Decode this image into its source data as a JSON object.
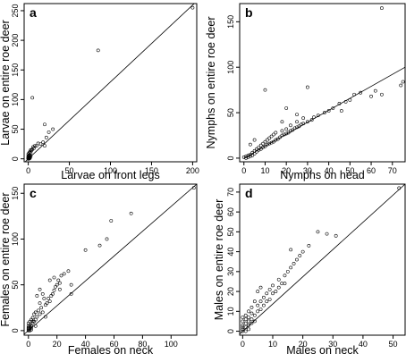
{
  "chart_data": [
    {
      "type": "scatter",
      "panel_label": "a",
      "xlabel": "Larvae on front legs",
      "ylabel": "Larvae on entire roe deer",
      "xlim": [
        -5,
        205
      ],
      "ylim": [
        -5,
        262
      ],
      "xticks": [
        0,
        50,
        100,
        150,
        200
      ],
      "yticks": [
        0,
        50,
        100,
        150,
        200,
        250
      ],
      "fit_line": [
        [
          -5,
          -6.5
        ],
        [
          205,
          266
        ]
      ],
      "points": [
        [
          0,
          0
        ],
        [
          0,
          0
        ],
        [
          0,
          1
        ],
        [
          1,
          0
        ],
        [
          0,
          2
        ],
        [
          1,
          1
        ],
        [
          1,
          2
        ],
        [
          2,
          1
        ],
        [
          0,
          3
        ],
        [
          2,
          3
        ],
        [
          1,
          4
        ],
        [
          2,
          2
        ],
        [
          0,
          5
        ],
        [
          3,
          4
        ],
        [
          1,
          6
        ],
        [
          2,
          6
        ],
        [
          0,
          8
        ],
        [
          1,
          10
        ],
        [
          2,
          12
        ],
        [
          3,
          10
        ],
        [
          4,
          14
        ],
        [
          5,
          16
        ],
        [
          3,
          15
        ],
        [
          6,
          20
        ],
        [
          7,
          18
        ],
        [
          10,
          22
        ],
        [
          15,
          25
        ],
        [
          18,
          28
        ],
        [
          20,
          22
        ],
        [
          25,
          45
        ],
        [
          30,
          50
        ],
        [
          22,
          36
        ],
        [
          12,
          26
        ],
        [
          8,
          22
        ],
        [
          20,
          58
        ],
        [
          5,
          103
        ],
        [
          85,
          183
        ],
        [
          200,
          255
        ]
      ]
    },
    {
      "type": "scatter",
      "panel_label": "b",
      "xlabel": "Nymphs on head",
      "ylabel": "Nymphs on entire roe deer",
      "xlim": [
        -2,
        76
      ],
      "ylim": [
        -4,
        170
      ],
      "xticks": [
        0,
        10,
        20,
        30,
        40,
        50,
        60,
        70
      ],
      "yticks": [
        0,
        50,
        100,
        150
      ],
      "fit_line": [
        [
          0,
          0
        ],
        [
          76,
          100
        ]
      ],
      "points": [
        [
          0,
          1
        ],
        [
          1,
          0
        ],
        [
          1,
          2
        ],
        [
          2,
          1
        ],
        [
          2,
          3
        ],
        [
          3,
          2
        ],
        [
          3,
          4
        ],
        [
          4,
          3
        ],
        [
          4,
          6
        ],
        [
          5,
          5
        ],
        [
          5,
          8
        ],
        [
          6,
          7
        ],
        [
          6,
          10
        ],
        [
          7,
          9
        ],
        [
          7,
          12
        ],
        [
          8,
          10
        ],
        [
          8,
          14
        ],
        [
          9,
          12
        ],
        [
          9,
          16
        ],
        [
          10,
          13
        ],
        [
          10,
          18
        ],
        [
          11,
          15
        ],
        [
          11,
          20
        ],
        [
          12,
          16
        ],
        [
          12,
          22
        ],
        [
          13,
          17
        ],
        [
          13,
          24
        ],
        [
          14,
          18
        ],
        [
          14,
          26
        ],
        [
          15,
          20
        ],
        [
          15,
          28
        ],
        [
          16,
          21
        ],
        [
          17,
          23
        ],
        [
          18,
          25
        ],
        [
          18,
          30
        ],
        [
          19,
          26
        ],
        [
          20,
          27
        ],
        [
          20,
          32
        ],
        [
          21,
          28
        ],
        [
          22,
          30
        ],
        [
          22,
          36
        ],
        [
          23,
          31
        ],
        [
          24,
          33
        ],
        [
          25,
          34
        ],
        [
          25,
          40
        ],
        [
          26,
          35
        ],
        [
          27,
          37
        ],
        [
          28,
          38
        ],
        [
          28,
          44
        ],
        [
          30,
          40
        ],
        [
          30,
          78
        ],
        [
          32,
          42
        ],
        [
          33,
          45
        ],
        [
          35,
          47
        ],
        [
          38,
          50
        ],
        [
          40,
          52
        ],
        [
          42,
          55
        ],
        [
          45,
          60
        ],
        [
          46,
          52
        ],
        [
          48,
          62
        ],
        [
          50,
          64
        ],
        [
          52,
          70
        ],
        [
          55,
          72
        ],
        [
          60,
          68
        ],
        [
          62,
          74
        ],
        [
          65,
          70
        ],
        [
          65,
          165
        ],
        [
          74,
          80
        ],
        [
          75,
          84
        ],
        [
          10,
          75
        ],
        [
          20,
          55
        ],
        [
          18,
          40
        ],
        [
          25,
          48
        ],
        [
          5,
          20
        ],
        [
          3,
          15
        ]
      ]
    },
    {
      "type": "scatter",
      "panel_label": "c",
      "xlabel": "Females on neck",
      "ylabel": "Females on entire roe deer",
      "xlim": [
        -3,
        118
      ],
      "ylim": [
        -5,
        160
      ],
      "xticks": [
        0,
        20,
        40,
        60,
        80,
        100
      ],
      "yticks": [
        0,
        50,
        100,
        150
      ],
      "fit_line": [
        [
          -3,
          -4
        ],
        [
          118,
          160
        ]
      ],
      "points": [
        [
          0,
          0
        ],
        [
          0,
          1
        ],
        [
          1,
          0
        ],
        [
          0,
          2
        ],
        [
          1,
          2
        ],
        [
          2,
          1
        ],
        [
          0,
          3
        ],
        [
          1,
          4
        ],
        [
          2,
          3
        ],
        [
          0,
          5
        ],
        [
          1,
          6
        ],
        [
          2,
          5
        ],
        [
          0,
          8
        ],
        [
          1,
          10
        ],
        [
          2,
          12
        ],
        [
          3,
          8
        ],
        [
          3,
          14
        ],
        [
          4,
          10
        ],
        [
          5,
          12
        ],
        [
          4,
          18
        ],
        [
          5,
          20
        ],
        [
          6,
          15
        ],
        [
          7,
          22
        ],
        [
          8,
          18
        ],
        [
          9,
          25
        ],
        [
          10,
          20
        ],
        [
          12,
          28
        ],
        [
          13,
          30
        ],
        [
          14,
          35
        ],
        [
          15,
          32
        ],
        [
          16,
          38
        ],
        [
          17,
          40
        ],
        [
          18,
          44
        ],
        [
          19,
          48
        ],
        [
          20,
          50
        ],
        [
          21,
          55
        ],
        [
          22,
          52
        ],
        [
          23,
          60
        ],
        [
          25,
          62
        ],
        [
          28,
          65
        ],
        [
          30,
          50
        ],
        [
          30,
          40
        ],
        [
          6,
          38
        ],
        [
          8,
          45
        ],
        [
          10,
          40
        ],
        [
          15,
          55
        ],
        [
          18,
          58
        ],
        [
          22,
          45
        ],
        [
          40,
          88
        ],
        [
          50,
          93
        ],
        [
          55,
          100
        ],
        [
          58,
          120
        ],
        [
          72,
          128
        ],
        [
          116,
          156
        ],
        [
          12,
          15
        ],
        [
          5,
          5
        ],
        [
          3,
          10
        ],
        [
          8,
          30
        ],
        [
          11,
          35
        ]
      ]
    },
    {
      "type": "scatter",
      "panel_label": "d",
      "xlabel": "Males on neck",
      "ylabel": "Males on entire roe deer",
      "xlim": [
        -1,
        54
      ],
      "ylim": [
        -2,
        74
      ],
      "xticks": [
        0,
        10,
        20,
        30,
        40,
        50
      ],
      "yticks": [
        0,
        10,
        20,
        30,
        40,
        50,
        60,
        70
      ],
      "fit_line": [
        [
          -1,
          -1.4
        ],
        [
          54,
          74
        ]
      ],
      "points": [
        [
          0,
          0
        ],
        [
          0,
          1
        ],
        [
          1,
          0
        ],
        [
          0,
          2
        ],
        [
          1,
          2
        ],
        [
          2,
          1
        ],
        [
          0,
          3
        ],
        [
          1,
          4
        ],
        [
          2,
          3
        ],
        [
          0,
          5
        ],
        [
          1,
          6
        ],
        [
          2,
          5
        ],
        [
          3,
          4
        ],
        [
          0,
          7
        ],
        [
          1,
          8
        ],
        [
          2,
          7
        ],
        [
          3,
          6
        ],
        [
          4,
          5
        ],
        [
          2,
          10
        ],
        [
          3,
          9
        ],
        [
          4,
          8
        ],
        [
          5,
          10
        ],
        [
          5,
          13
        ],
        [
          6,
          11
        ],
        [
          6,
          15
        ],
        [
          7,
          13
        ],
        [
          7,
          17
        ],
        [
          8,
          15
        ],
        [
          8,
          19
        ],
        [
          9,
          16
        ],
        [
          9,
          21
        ],
        [
          10,
          19
        ],
        [
          10,
          23
        ],
        [
          11,
          20
        ],
        [
          12,
          22
        ],
        [
          12,
          26
        ],
        [
          13,
          24
        ],
        [
          14,
          28
        ],
        [
          15,
          30
        ],
        [
          16,
          32
        ],
        [
          17,
          34
        ],
        [
          18,
          36
        ],
        [
          20,
          40
        ],
        [
          22,
          43
        ],
        [
          25,
          50
        ],
        [
          28,
          49
        ],
        [
          31,
          48
        ],
        [
          52,
          72
        ],
        [
          5,
          20
        ],
        [
          6,
          22
        ],
        [
          14,
          24
        ],
        [
          16,
          41
        ],
        [
          19,
          38
        ],
        [
          3,
          12
        ],
        [
          4,
          15
        ]
      ]
    }
  ]
}
